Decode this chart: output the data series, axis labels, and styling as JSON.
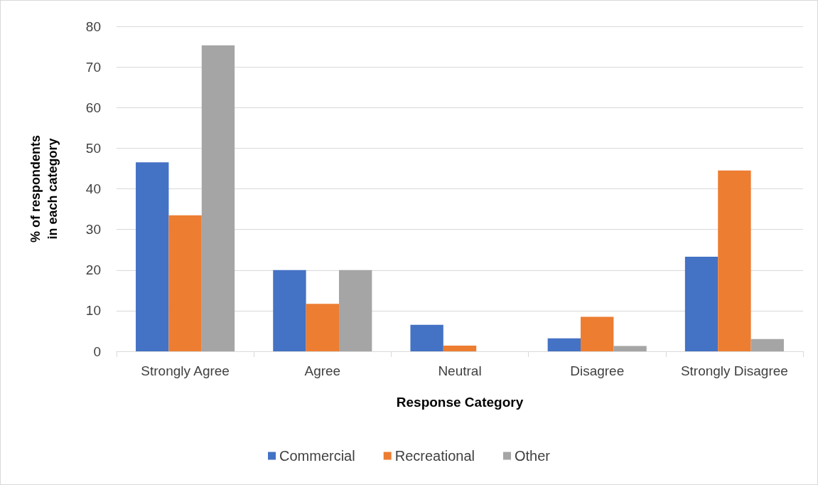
{
  "chart_data": {
    "type": "bar",
    "categories": [
      "Strongly Agree",
      "Agree",
      "Neutral",
      "Disagree",
      "Strongly Disagree"
    ],
    "series": [
      {
        "name": "Commercial",
        "color": "#4472c4",
        "values": [
          46.5,
          20,
          6.5,
          3.2,
          23.3
        ]
      },
      {
        "name": "Recreational",
        "color": "#ed7d31",
        "values": [
          33.5,
          11.7,
          1.4,
          8.5,
          44.5
        ]
      },
      {
        "name": "Other",
        "color": "#a5a5a5",
        "values": [
          75.3,
          20,
          0,
          1.3,
          3
        ]
      }
    ],
    "xlabel": "Response Category",
    "ylabel": "% of respondents\nin each category",
    "ylim": [
      0,
      80
    ],
    "yticks": [
      0,
      10,
      20,
      30,
      40,
      50,
      60,
      70,
      80
    ],
    "grid": "y",
    "legend": "bottom"
  }
}
